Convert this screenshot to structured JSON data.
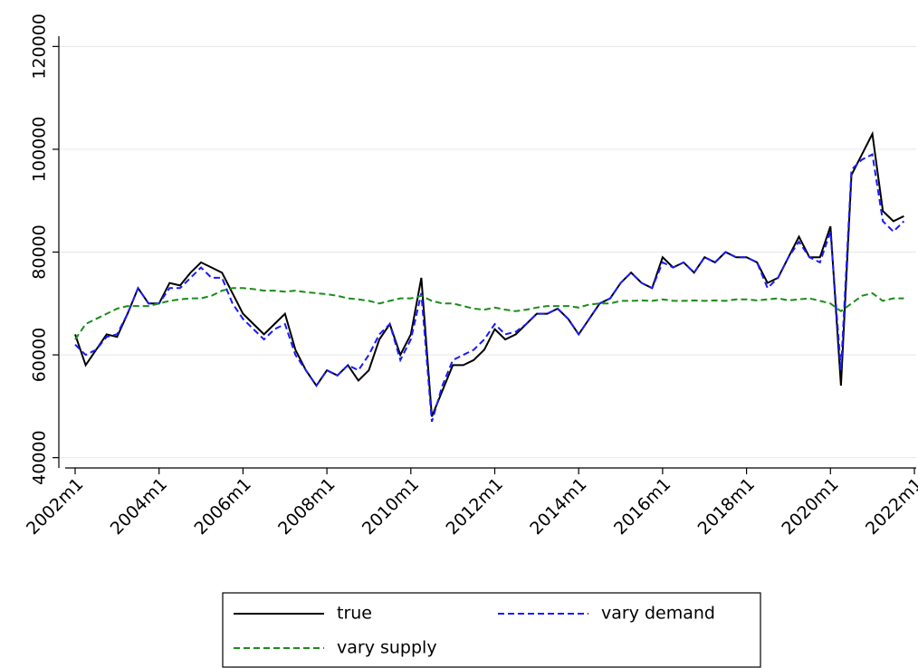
{
  "chart_data": {
    "type": "line",
    "x": [
      "2002m1",
      "2002m4",
      "2002m7",
      "2002m10",
      "2003m1",
      "2003m4",
      "2003m7",
      "2003m10",
      "2004m1",
      "2004m4",
      "2004m7",
      "2004m10",
      "2005m1",
      "2005m4",
      "2005m7",
      "2005m10",
      "2006m1",
      "2006m4",
      "2006m7",
      "2006m10",
      "2007m1",
      "2007m4",
      "2007m7",
      "2007m10",
      "2008m1",
      "2008m4",
      "2008m7",
      "2008m10",
      "2009m1",
      "2009m4",
      "2009m7",
      "2009m10",
      "2010m1",
      "2010m4",
      "2010m7",
      "2010m10",
      "2011m1",
      "2011m4",
      "2011m7",
      "2011m10",
      "2012m1",
      "2012m4",
      "2012m7",
      "2012m10",
      "2013m1",
      "2013m4",
      "2013m7",
      "2013m10",
      "2014m1",
      "2014m4",
      "2014m7",
      "2014m10",
      "2015m1",
      "2015m4",
      "2015m7",
      "2015m10",
      "2016m1",
      "2016m4",
      "2016m7",
      "2016m10",
      "2017m1",
      "2017m4",
      "2017m7",
      "2017m10",
      "2018m1",
      "2018m4",
      "2018m7",
      "2018m10",
      "2019m1",
      "2019m4",
      "2019m7",
      "2019m10",
      "2020m1",
      "2020m4",
      "2020m7",
      "2020m10",
      "2021m1",
      "2021m4",
      "2021m7",
      "2021m10"
    ],
    "series": [
      {
        "name": "true",
        "color": "#000000",
        "dash": false,
        "values": [
          64000,
          58000,
          61000,
          64000,
          63500,
          68000,
          73000,
          70000,
          70000,
          74000,
          73500,
          76000,
          78000,
          77000,
          76000,
          72000,
          68000,
          66000,
          64000,
          66000,
          68000,
          61000,
          57000,
          54000,
          57000,
          56000,
          58000,
          55000,
          57000,
          63000,
          66000,
          60000,
          64000,
          75000,
          48000,
          53000,
          58000,
          58000,
          59000,
          61000,
          65000,
          63000,
          64000,
          66000,
          68000,
          68000,
          69000,
          67000,
          64000,
          67000,
          70000,
          71000,
          74000,
          76000,
          74000,
          73000,
          79000,
          77000,
          78000,
          76000,
          79000,
          78000,
          80000,
          79000,
          79000,
          78000,
          74000,
          75000,
          79000,
          83000,
          79000,
          79000,
          85000,
          54000,
          95000,
          99000,
          103000,
          88000,
          86000,
          87000
        ]
      },
      {
        "name": "vary demand",
        "color": "#1a1aff",
        "dash": true,
        "values": [
          62000,
          60000,
          61000,
          63500,
          64000,
          68000,
          73000,
          70000,
          70000,
          73000,
          73000,
          75000,
          77000,
          75000,
          75000,
          70000,
          67000,
          65000,
          63000,
          65000,
          66000,
          60000,
          57000,
          54000,
          57000,
          56000,
          58000,
          57000,
          60000,
          64000,
          66000,
          59000,
          63000,
          72000,
          47000,
          54000,
          59000,
          60000,
          61000,
          63000,
          66000,
          64000,
          64500,
          66000,
          68000,
          68000,
          69000,
          67000,
          64000,
          67000,
          70000,
          71000,
          74000,
          76000,
          74000,
          73000,
          78000,
          77000,
          78000,
          76000,
          79000,
          78000,
          80000,
          79000,
          79000,
          78000,
          73000,
          75000,
          79000,
          82000,
          79000,
          78000,
          84000,
          57000,
          96000,
          98000,
          99000,
          86000,
          84000,
          86000
        ]
      },
      {
        "name": "vary supply",
        "color": "#1a8c1a",
        "dash": true,
        "values": [
          63000,
          66000,
          67000,
          68000,
          69000,
          69500,
          69500,
          69500,
          70000,
          70500,
          70800,
          71000,
          71000,
          71500,
          72500,
          73000,
          73000,
          72800,
          72500,
          72500,
          72300,
          72500,
          72200,
          72000,
          71800,
          71500,
          71000,
          70800,
          70500,
          70000,
          70500,
          71000,
          71000,
          71500,
          70500,
          70000,
          70000,
          69500,
          69000,
          68800,
          69200,
          68800,
          68500,
          68800,
          69200,
          69500,
          69500,
          69500,
          69200,
          69800,
          70000,
          70000,
          70500,
          70500,
          70600,
          70500,
          70800,
          70500,
          70500,
          70600,
          70500,
          70600,
          70500,
          70800,
          70800,
          70600,
          70800,
          71000,
          70600,
          70800,
          71000,
          70500,
          70000,
          68500,
          70000,
          71500,
          72000,
          70500,
          71000,
          71000
        ]
      }
    ],
    "xticks": [
      "2002m1",
      "2004m1",
      "2006m1",
      "2008m1",
      "2010m1",
      "2012m1",
      "2014m1",
      "2016m1",
      "2018m1",
      "2020m1",
      "2022m1"
    ],
    "ylim": [
      38000,
      122000
    ],
    "yticks": [
      40000,
      60000,
      80000,
      100000,
      120000
    ],
    "grid": true,
    "legend_position": "bottom"
  }
}
